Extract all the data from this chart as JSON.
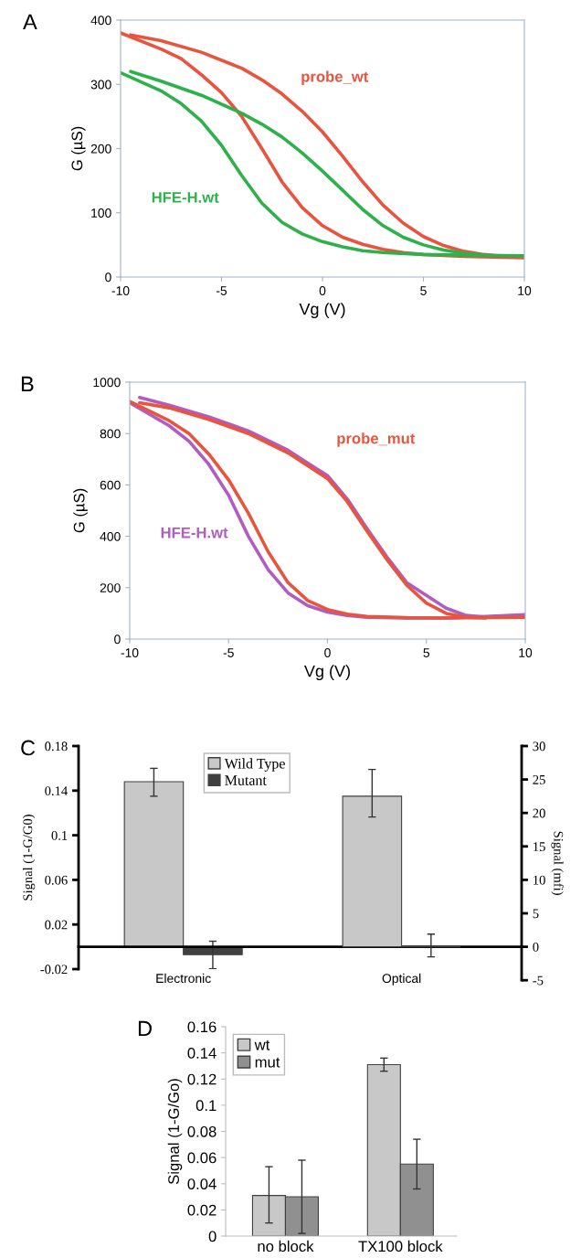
{
  "chart_data": [
    {
      "type": "line",
      "title": "A",
      "xlabel": "Vg (V)",
      "ylabel": "G (µS)",
      "xlim": [
        -10,
        10
      ],
      "xticks": [
        -10,
        -5,
        0,
        5,
        10
      ],
      "ylim": [
        0,
        400
      ],
      "yticks": [
        0,
        100,
        200,
        300,
        400
      ],
      "grid": false,
      "series": [
        {
          "color": "#e8553e",
          "x": [
            -10,
            -8,
            -7,
            -6,
            -5,
            -4,
            -3,
            -2,
            -1,
            0,
            1,
            2,
            3,
            4,
            5,
            7,
            10
          ],
          "values": [
            380,
            355,
            340,
            315,
            287,
            250,
            200,
            148,
            108,
            80,
            62,
            51,
            43,
            38,
            35,
            32,
            30
          ]
        },
        {
          "name": "probe_wt",
          "color": "#e8553e",
          "x": [
            -9.5,
            -8,
            -6,
            -4,
            -3,
            -2,
            -1,
            0,
            1,
            2,
            3,
            4,
            5,
            6,
            7,
            8,
            9
          ],
          "values": [
            377,
            368,
            350,
            325,
            307,
            285,
            258,
            226,
            188,
            148,
            112,
            84,
            63,
            49,
            40,
            35,
            32
          ]
        },
        {
          "color": "#2eb14b",
          "x": [
            -10,
            -8,
            -7,
            -6,
            -5,
            -4,
            -3,
            -2,
            -1,
            0,
            1,
            2,
            3,
            5,
            7,
            10
          ],
          "values": [
            318,
            290,
            270,
            243,
            205,
            158,
            115,
            85,
            67,
            55,
            47,
            41,
            38,
            35,
            34,
            33
          ]
        },
        {
          "name": "HFE-H.wt",
          "color": "#2eb14b",
          "x": [
            -9.5,
            -8,
            -6,
            -4,
            -3,
            -2,
            -1,
            0,
            1,
            2,
            3,
            4,
            5,
            6,
            7,
            8
          ],
          "values": [
            320,
            305,
            283,
            255,
            238,
            218,
            193,
            165,
            135,
            105,
            80,
            62,
            50,
            42,
            37,
            34
          ]
        }
      ]
    },
    {
      "type": "line",
      "title": "B",
      "xlabel": "Vg (V)",
      "ylabel": "G (µS)",
      "xlim": [
        -10,
        10
      ],
      "xticks": [
        -10,
        -5,
        0,
        5,
        10
      ],
      "ylim": [
        0,
        1000
      ],
      "yticks": [
        0,
        200,
        400,
        600,
        800,
        1000
      ],
      "grid": false,
      "series": [
        {
          "color": "#b05cc0",
          "x": [
            -10,
            -8,
            -7,
            -6,
            -5,
            -4,
            -3,
            -2,
            -1,
            0,
            1,
            2,
            4,
            6,
            8,
            10
          ],
          "values": [
            920,
            830,
            770,
            680,
            560,
            400,
            270,
            180,
            130,
            105,
            92,
            85,
            82,
            82,
            88,
            95
          ]
        },
        {
          "name": "HFE-H.wt",
          "color": "#b05cc0",
          "x": [
            -9.5,
            -8,
            -6,
            -4,
            -2,
            -1,
            0,
            1,
            2,
            3,
            4,
            5,
            6,
            7,
            8,
            9
          ],
          "values": [
            940,
            910,
            865,
            810,
            735,
            685,
            636,
            545,
            430,
            320,
            220,
            170,
            120,
            92,
            85,
            90
          ]
        },
        {
          "color": "#e8553e",
          "x": [
            -10,
            -8,
            -7,
            -6,
            -5,
            -4,
            -3,
            -2,
            -1,
            0,
            1,
            2,
            4,
            6,
            10
          ],
          "values": [
            925,
            850,
            800,
            720,
            620,
            490,
            340,
            220,
            150,
            115,
            97,
            88,
            83,
            82,
            85
          ]
        },
        {
          "name": "probe_mut",
          "color": "#e8553e",
          "x": [
            -9.5,
            -8,
            -6,
            -4,
            -2,
            0,
            1,
            2,
            3,
            4,
            5,
            6,
            7,
            8
          ],
          "values": [
            920,
            900,
            855,
            800,
            725,
            625,
            535,
            420,
            310,
            210,
            140,
            100,
            85,
            82
          ]
        }
      ]
    },
    {
      "type": "bar",
      "title": "C",
      "categories": [
        "Electronic",
        "Optical"
      ],
      "ylabel": "Signal (1-G/G0)",
      "y2label": "Signal (mfi)",
      "ylim": [
        -0.02,
        0.18
      ],
      "yticks": [
        0.18,
        0.14,
        0.1,
        0.06,
        0.02,
        -0.02
      ],
      "y2lim": [
        -5,
        30
      ],
      "y2ticks": [
        -5,
        0,
        5,
        10,
        15,
        20,
        25,
        30
      ],
      "grid": false,
      "legend": "top",
      "series": [
        {
          "name": "Wild Type",
          "color": "#c8c8c8",
          "values": [
            0.148,
            null
          ],
          "errors": [
            [
              0.135,
              0.16
            ],
            null
          ]
        },
        {
          "name": "Mutant",
          "color": "#404040",
          "values": [
            -0.007,
            null
          ],
          "errors": [
            [
              -0.0197,
              0.005
            ],
            null
          ]
        },
        {
          "color": "#c8c8c8",
          "axis": "y2",
          "values": [
            null,
            22.5
          ],
          "errors": [
            null,
            [
              19.4,
              26.5
            ]
          ]
        },
        {
          "color": "#404040",
          "axis": "y2",
          "values": [
            null,
            0
          ],
          "errors": [
            null,
            [
              -1.5,
              1.9
            ]
          ]
        }
      ]
    },
    {
      "type": "bar",
      "title": "D",
      "categories": [
        "no block",
        "TX100 block"
      ],
      "ylabel": "Signal (1-G/Go)",
      "ylim": [
        0,
        0.16
      ],
      "yticks": [
        0,
        0.02,
        0.04,
        0.06,
        0.08,
        0.1,
        0.12,
        0.14,
        0.16
      ],
      "grid": false,
      "legend": "top left",
      "series": [
        {
          "name": "wt",
          "color": "#c8c8c8",
          "values": [
            0.031,
            0.131
          ],
          "errors": [
            [
              0.01,
              0.053
            ],
            [
              0.126,
              0.136
            ]
          ]
        },
        {
          "name": "mut",
          "color": "#909090",
          "values": [
            0.03,
            0.055
          ],
          "errors": [
            [
              0.002,
              0.058
            ],
            [
              0.036,
              0.074
            ]
          ]
        }
      ]
    }
  ]
}
